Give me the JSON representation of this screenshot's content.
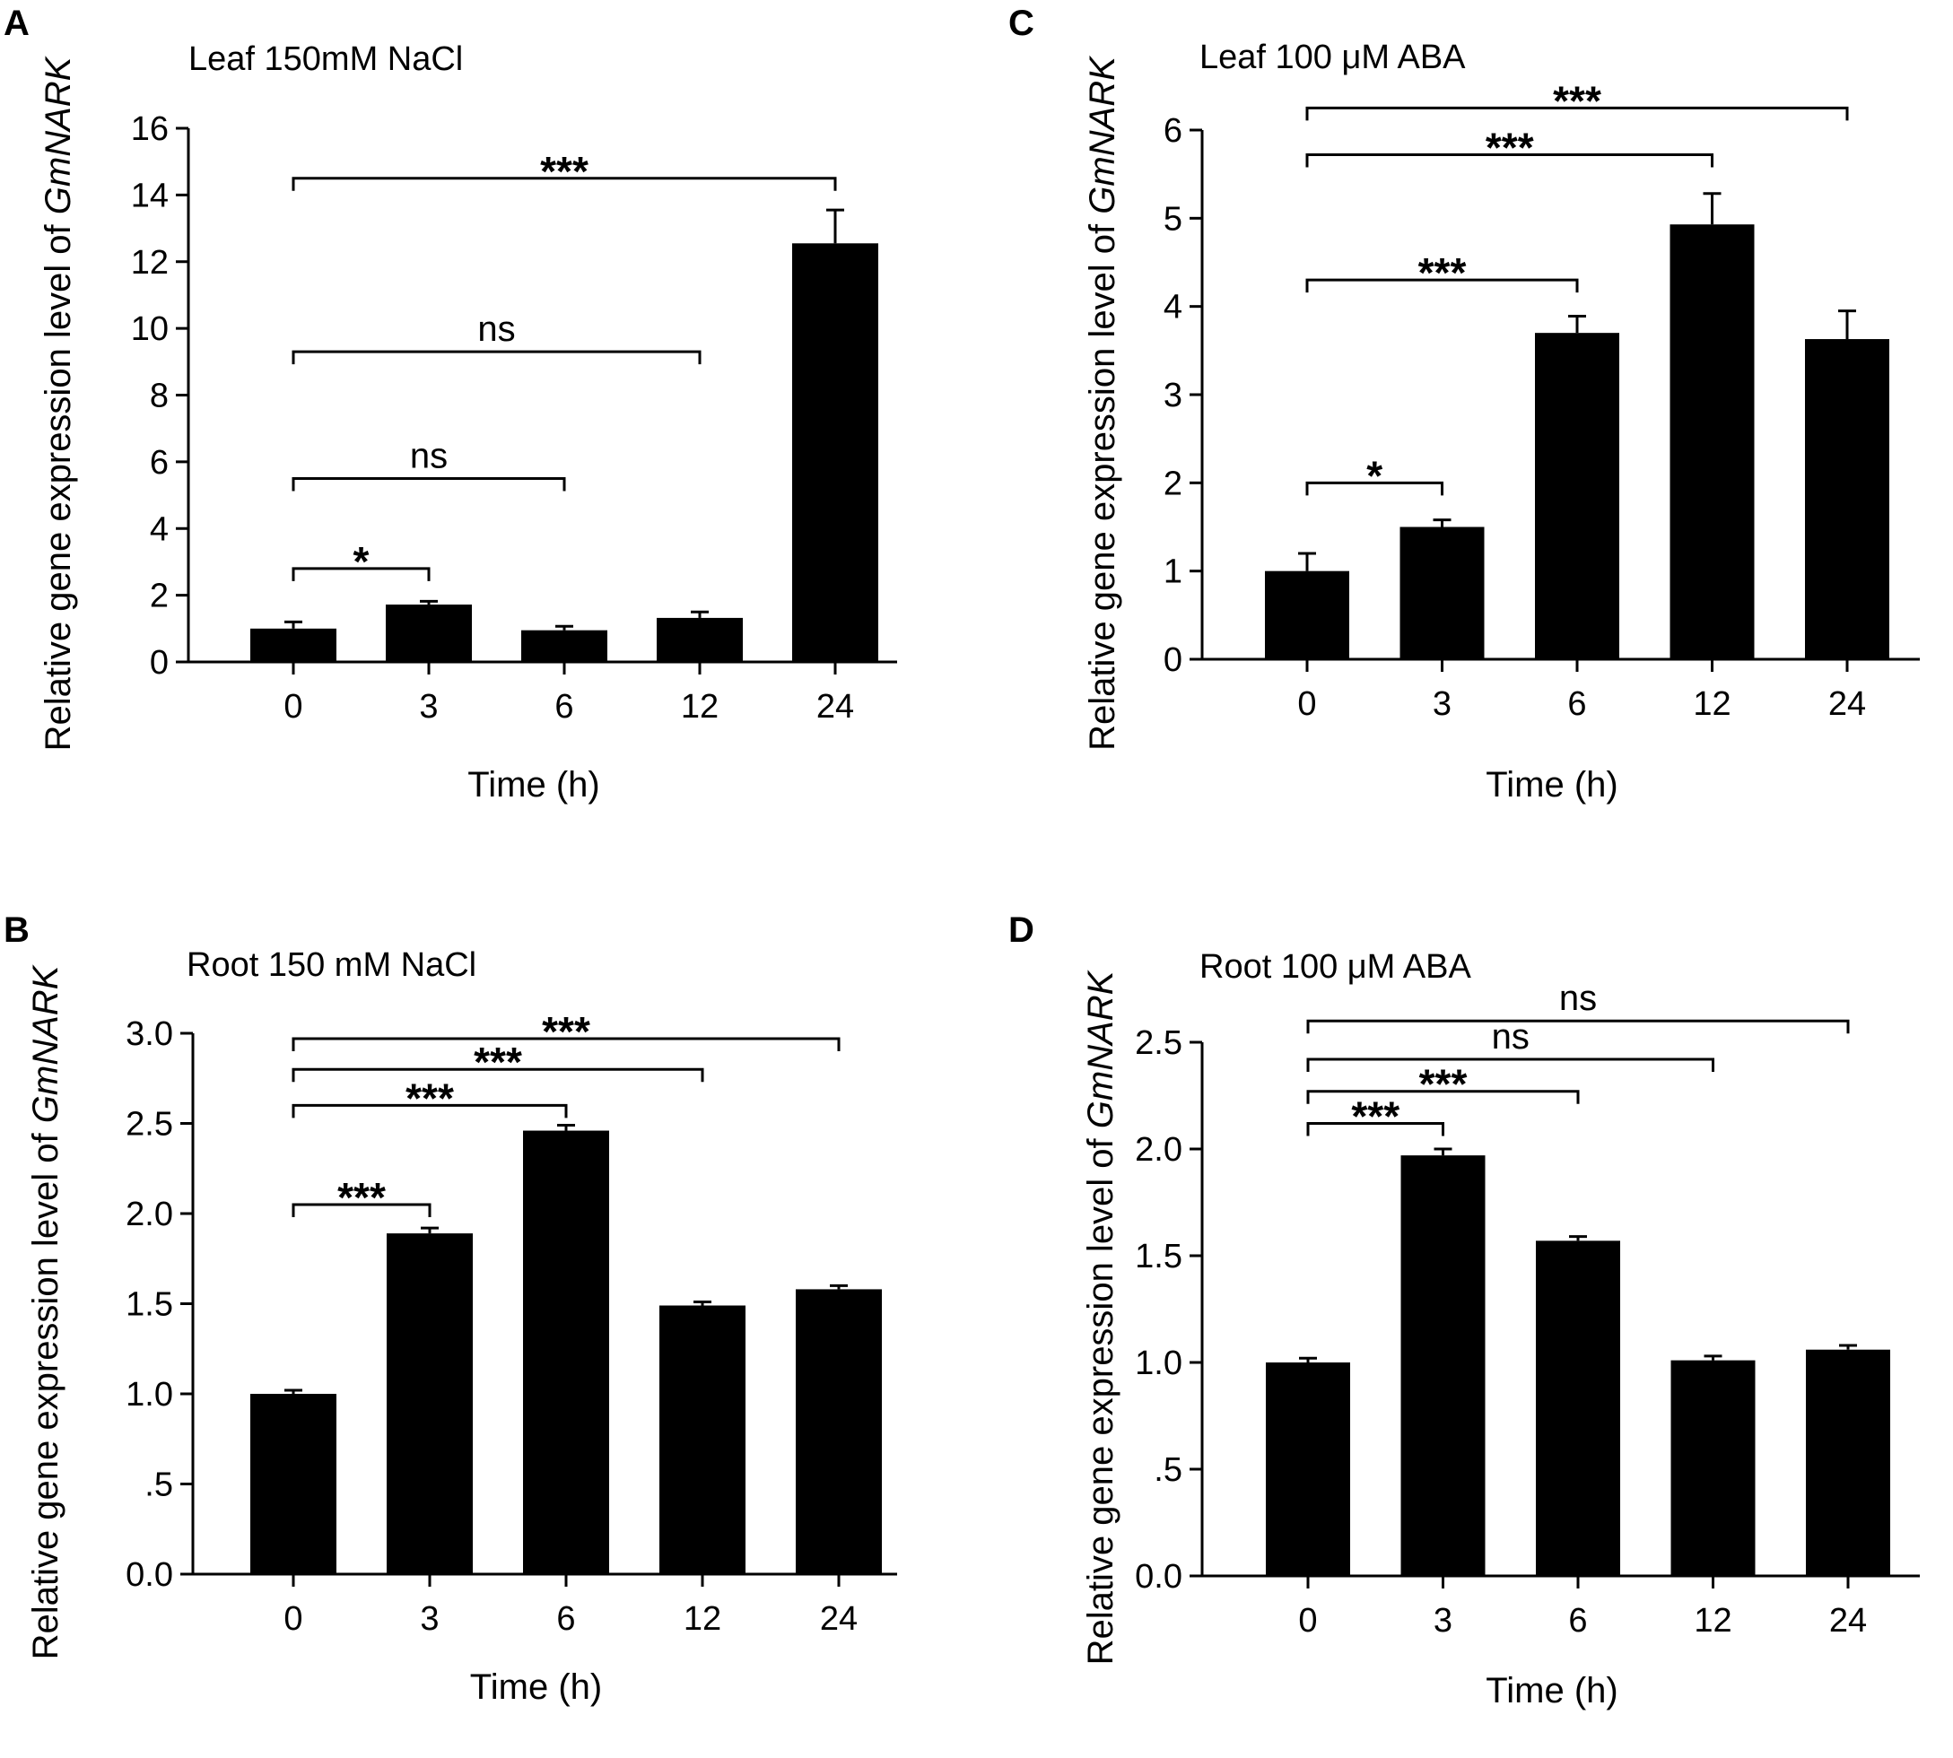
{
  "panel_letters": [
    "A",
    "B",
    "C",
    "D"
  ],
  "chart_data": [
    {
      "panel": "A",
      "type": "bar",
      "title": "Leaf 150mM NaCl",
      "xlabel": "Time (h)",
      "ylabel_prefix": "Relative gene expression level of ",
      "ylabel_gene": "GmNARK",
      "categories": [
        "0",
        "3",
        "6",
        "12",
        "24"
      ],
      "values": [
        1.0,
        1.72,
        0.95,
        1.32,
        12.55
      ],
      "errors": [
        0.2,
        0.1,
        0.12,
        0.18,
        1.0
      ],
      "ylim": [
        0,
        16
      ],
      "yticks": [
        0,
        2,
        4,
        6,
        8,
        10,
        12,
        14,
        16
      ],
      "ytick_labels": [
        "0",
        "2",
        "4",
        "6",
        "8",
        "10",
        "12",
        "14",
        "16"
      ],
      "bar_color": "#000000",
      "significance": [
        {
          "from": "0",
          "to": "3",
          "label": "*",
          "y": 2.8
        },
        {
          "from": "0",
          "to": "6",
          "label": "ns",
          "y": 5.5
        },
        {
          "from": "0",
          "to": "12",
          "label": "ns",
          "y": 9.3
        },
        {
          "from": "0",
          "to": "24",
          "label": "***",
          "y": 14.5
        }
      ]
    },
    {
      "panel": "B",
      "type": "bar",
      "title": "Root 150 mM NaCl",
      "xlabel": "Time (h)",
      "ylabel_prefix": "Relative gene expression level of ",
      "ylabel_gene": "GmNARK",
      "categories": [
        "0",
        "3",
        "6",
        "12",
        "24"
      ],
      "values": [
        1.0,
        1.89,
        2.46,
        1.49,
        1.58
      ],
      "errors": [
        0.02,
        0.03,
        0.03,
        0.02,
        0.02
      ],
      "ylim": [
        0,
        3.0
      ],
      "yticks": [
        0,
        0.5,
        1.0,
        1.5,
        2.0,
        2.5,
        3.0
      ],
      "ytick_labels": [
        "0.0",
        ".5",
        "1.0",
        "1.5",
        "2.0",
        "2.5",
        "3.0"
      ],
      "bar_color": "#000000",
      "significance": [
        {
          "from": "0",
          "to": "3",
          "label": "***",
          "y": 2.05
        },
        {
          "from": "0",
          "to": "6",
          "label": "***",
          "y": 2.6
        },
        {
          "from": "0",
          "to": "12",
          "label": "***",
          "y": 2.8
        },
        {
          "from": "0",
          "to": "24",
          "label": "***",
          "y": 2.97
        }
      ]
    },
    {
      "panel": "C",
      "type": "bar",
      "title": "Leaf 100 μM ABA",
      "xlabel": "Time (h)",
      "ylabel_prefix": "Relative gene expression level of ",
      "ylabel_gene": "GmNARK",
      "categories": [
        "0",
        "3",
        "6",
        "12",
        "24"
      ],
      "values": [
        1.0,
        1.5,
        3.7,
        4.93,
        3.63
      ],
      "errors": [
        0.2,
        0.08,
        0.19,
        0.35,
        0.32
      ],
      "ylim": [
        0,
        6
      ],
      "yticks": [
        0,
        1,
        2,
        3,
        4,
        5,
        6
      ],
      "ytick_labels": [
        "0",
        "1",
        "2",
        "3",
        "4",
        "5",
        "6"
      ],
      "bar_color": "#000000",
      "significance": [
        {
          "from": "0",
          "to": "3",
          "label": "*",
          "y": 2.0
        },
        {
          "from": "0",
          "to": "6",
          "label": "***",
          "y": 4.3
        },
        {
          "from": "0",
          "to": "12",
          "label": "***",
          "y": 5.72
        },
        {
          "from": "0",
          "to": "24",
          "label": "***",
          "y": 6.25
        }
      ]
    },
    {
      "panel": "D",
      "type": "bar",
      "title": "Root 100 μM ABA",
      "xlabel": "Time (h)",
      "ylabel_prefix": "Relative gene expression level of ",
      "ylabel_gene": "GmNARK",
      "categories": [
        "0",
        "3",
        "6",
        "12",
        "24"
      ],
      "values": [
        1.0,
        1.97,
        1.57,
        1.01,
        1.06
      ],
      "errors": [
        0.02,
        0.03,
        0.02,
        0.02,
        0.02
      ],
      "ylim": [
        0,
        2.5
      ],
      "yticks": [
        0,
        0.5,
        1.0,
        1.5,
        2.0,
        2.5
      ],
      "ytick_labels": [
        "0.0",
        ".5",
        "1.0",
        "1.5",
        "2.0",
        "2.5"
      ],
      "bar_color": "#000000",
      "significance": [
        {
          "from": "0",
          "to": "3",
          "label": "***",
          "y": 2.12
        },
        {
          "from": "0",
          "to": "6",
          "label": "***",
          "y": 2.27
        },
        {
          "from": "0",
          "to": "12",
          "label": "ns",
          "y": 2.42
        },
        {
          "from": "0",
          "to": "24",
          "label": "ns",
          "y": 2.6
        }
      ]
    }
  ]
}
